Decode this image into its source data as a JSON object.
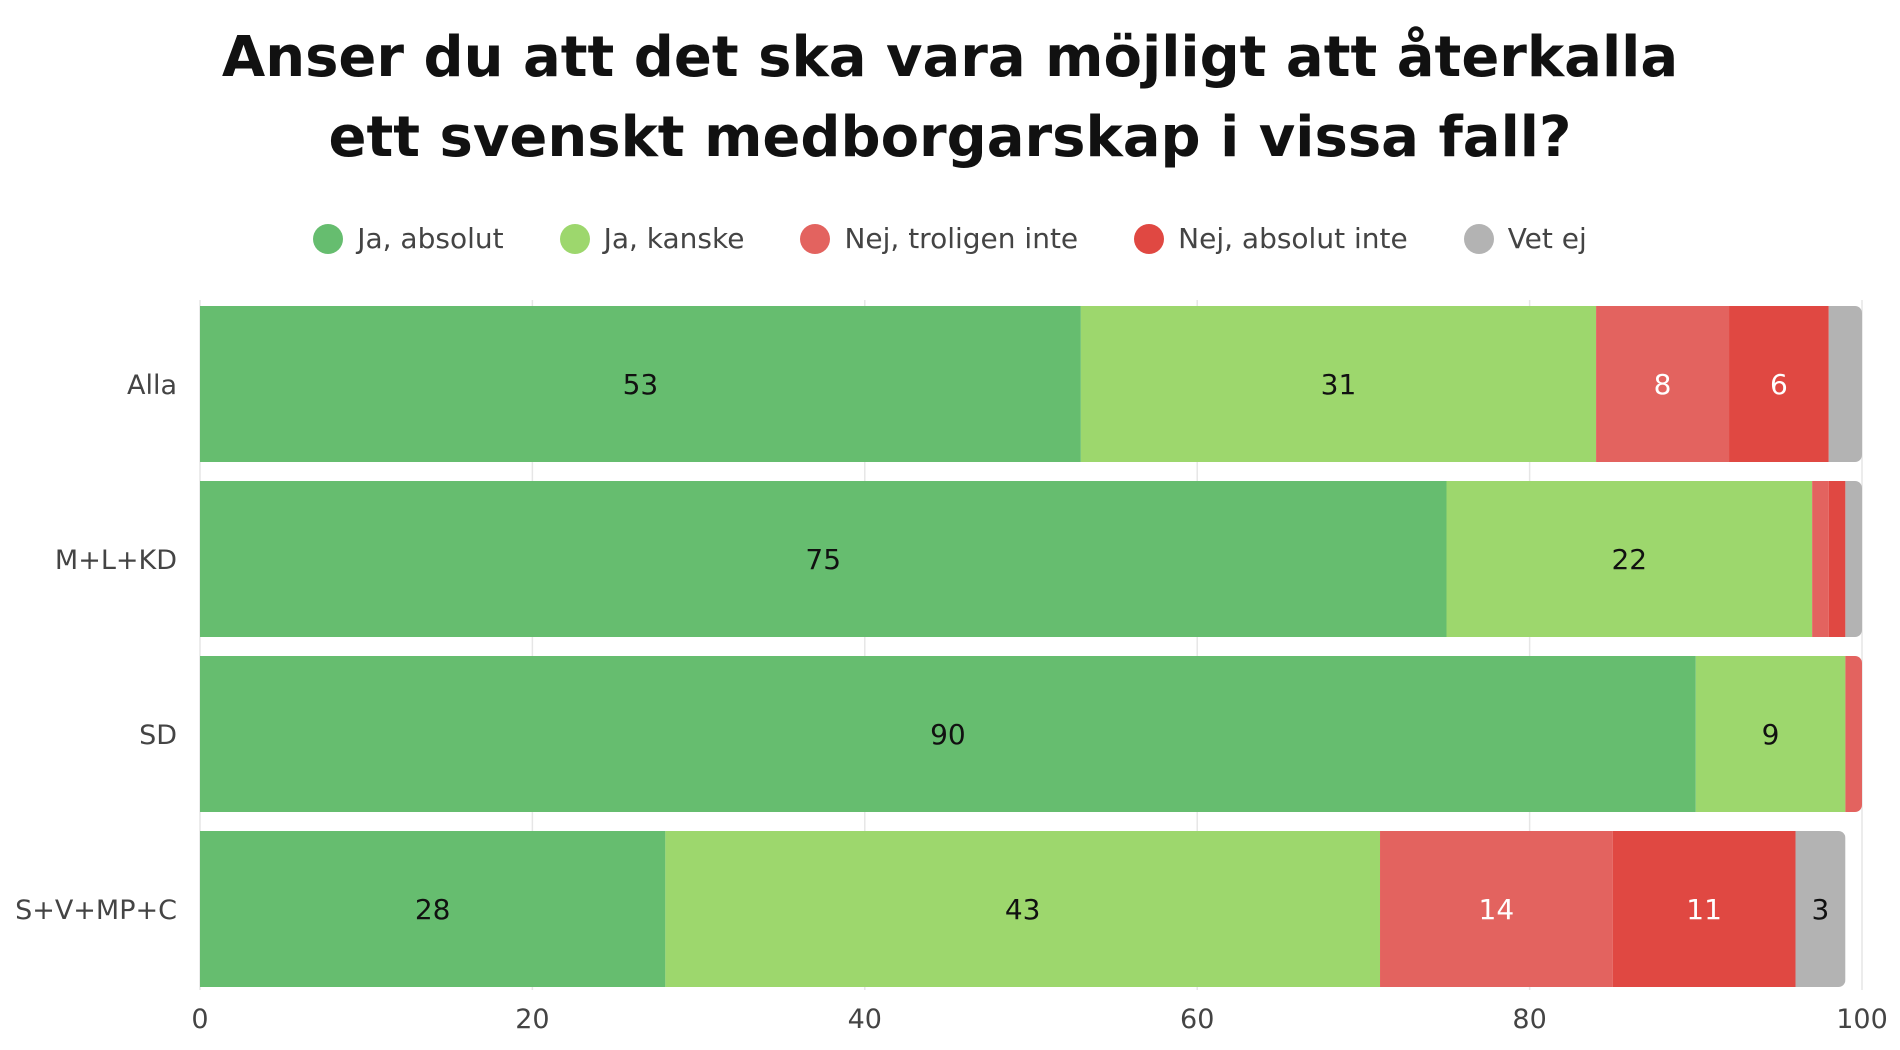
{
  "chart_data": {
    "type": "bar",
    "orientation": "horizontal",
    "stacked": true,
    "title_lines": [
      "Anser du att det ska vara möjligt att återkalla",
      "ett svenskt medborgarskap i vissa fall?"
    ],
    "categories": [
      "Alla",
      "M+L+KD",
      "SD",
      "S+V+MP+C"
    ],
    "series": [
      {
        "name": "Ja, absolut",
        "color": "#66bd6f",
        "values": [
          53,
          75,
          90,
          28
        ]
      },
      {
        "name": "Ja, kanske",
        "color": "#9dd76d",
        "values": [
          31,
          22,
          9,
          43
        ]
      },
      {
        "name": "Nej, troligen inte",
        "color": "#e3635f",
        "values": [
          8,
          1,
          1,
          14
        ]
      },
      {
        "name": "Nej, absolut inte",
        "color": "#e04842",
        "values": [
          6,
          1,
          0,
          11
        ]
      },
      {
        "name": "Vet ej",
        "color": "#b3b3b3",
        "values": [
          2,
          1,
          0,
          3
        ]
      }
    ],
    "data_labels": [
      [
        "53",
        "31",
        "8",
        "6",
        ""
      ],
      [
        "75",
        "22",
        "",
        "",
        ""
      ],
      [
        "90",
        "9",
        "",
        "",
        ""
      ],
      [
        "28",
        "43",
        "14",
        "11",
        "3"
      ]
    ],
    "label_text_colors": [
      "#111111",
      "#111111",
      "#ffffff",
      "#ffffff",
      "#111111"
    ],
    "xlim": [
      0,
      100
    ],
    "xticks": [
      "0",
      "20",
      "40",
      "60",
      "80",
      "100"
    ],
    "grid": true,
    "legend_position": "top"
  }
}
